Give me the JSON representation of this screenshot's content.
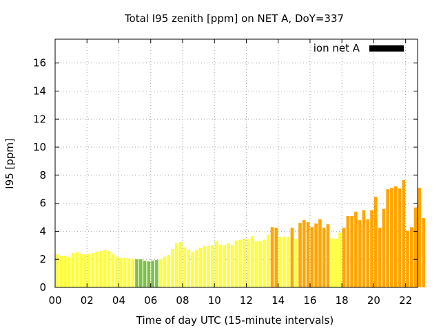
{
  "chart_data": {
    "type": "bar",
    "title": "Total I95 zenith [ppm] on NET A, DoY=337",
    "xlabel": "Time of day UTC (15-minute intervals)",
    "ylabel": "I95 [ppm]",
    "xlim": [
      0,
      22.75
    ],
    "ylim": [
      0,
      17.7
    ],
    "x_ticks": [
      "00",
      "02",
      "04",
      "06",
      "08",
      "10",
      "12",
      "14",
      "16",
      "18",
      "20",
      "22"
    ],
    "x_tick_values": [
      0,
      2,
      4,
      6,
      8,
      10,
      12,
      14,
      16,
      18,
      20,
      22
    ],
    "y_ticks": [
      "0",
      "2",
      "4",
      "6",
      "8",
      "10",
      "12",
      "14",
      "16"
    ],
    "y_tick_values": [
      0,
      2,
      4,
      6,
      8,
      10,
      12,
      14,
      16
    ],
    "grid": true,
    "legend": {
      "placement": "top-right",
      "label": "ion net A",
      "color": "#000000"
    },
    "interval_hours": 0.25,
    "colors": {
      "green": "#7dc242",
      "yellow": "#ffff33",
      "orange": "#ffa500"
    },
    "values": [
      2.35,
      2.25,
      2.25,
      2.15,
      2.45,
      2.5,
      2.4,
      2.35,
      2.4,
      2.45,
      2.55,
      2.6,
      2.65,
      2.6,
      2.4,
      2.2,
      2.1,
      2.1,
      2.05,
      2.05,
      2.0,
      2.0,
      1.9,
      1.85,
      1.9,
      1.95,
      2.0,
      2.2,
      2.3,
      2.75,
      3.15,
      3.25,
      2.85,
      2.7,
      2.55,
      2.65,
      2.8,
      2.95,
      2.95,
      3.0,
      3.3,
      3.05,
      3.0,
      3.15,
      3.0,
      3.35,
      3.4,
      3.45,
      3.45,
      3.65,
      3.3,
      3.3,
      3.4,
      3.75,
      4.3,
      4.25,
      3.6,
      3.6,
      3.6,
      4.25,
      3.45,
      4.6,
      4.8,
      4.65,
      4.3,
      4.55,
      4.85,
      4.25,
      4.5,
      3.5,
      3.45,
      3.9,
      4.25,
      5.1,
      5.1,
      5.4,
      4.8,
      5.5,
      4.85,
      5.5,
      6.45,
      4.25,
      5.6,
      7.0,
      7.1,
      7.2,
      7.05,
      7.65,
      4.05,
      4.3,
      5.7,
      7.1,
      4.95
    ],
    "bar_colors": [
      "yellow",
      "yellow",
      "yellow",
      "yellow",
      "yellow",
      "yellow",
      "yellow",
      "yellow",
      "yellow",
      "yellow",
      "yellow",
      "yellow",
      "yellow",
      "yellow",
      "yellow",
      "yellow",
      "yellow",
      "yellow",
      "yellow",
      "yellow",
      "green",
      "green",
      "green",
      "green",
      "green",
      "green",
      "yellow",
      "yellow",
      "yellow",
      "yellow",
      "yellow",
      "yellow",
      "yellow",
      "yellow",
      "yellow",
      "yellow",
      "yellow",
      "yellow",
      "yellow",
      "yellow",
      "yellow",
      "yellow",
      "yellow",
      "yellow",
      "yellow",
      "yellow",
      "yellow",
      "yellow",
      "yellow",
      "yellow",
      "yellow",
      "yellow",
      "yellow",
      "yellow",
      "orange",
      "orange",
      "yellow",
      "yellow",
      "yellow",
      "orange",
      "yellow",
      "orange",
      "orange",
      "orange",
      "orange",
      "orange",
      "orange",
      "orange",
      "orange",
      "yellow",
      "yellow",
      "yellow",
      "orange",
      "orange",
      "orange",
      "orange",
      "orange",
      "orange",
      "orange",
      "orange",
      "orange",
      "orange",
      "orange",
      "orange",
      "orange",
      "orange",
      "orange",
      "orange",
      "orange",
      "orange",
      "orange",
      "orange",
      "orange"
    ]
  }
}
